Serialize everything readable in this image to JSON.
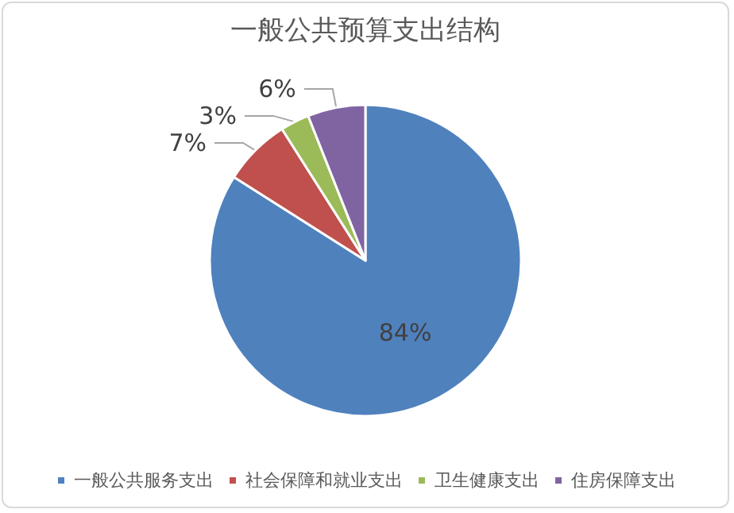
{
  "chart_data": {
    "type": "pie",
    "title": "一般公共预算支出结构",
    "categories": [
      "一般公共服务支出",
      "社会保障和就业支出",
      "卫生健康支出",
      "住房保障支出"
    ],
    "values": [
      84,
      7,
      3,
      6
    ],
    "value_labels": [
      "84%",
      "7%",
      "3%",
      "6%"
    ],
    "colors": [
      "#4f81bd",
      "#c0504d",
      "#9bbb59",
      "#8064a2"
    ],
    "legend": "bottom"
  }
}
